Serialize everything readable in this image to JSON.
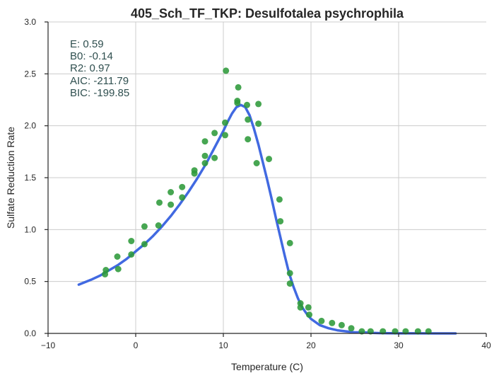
{
  "chart_data": {
    "type": "scatter",
    "title": "405_Sch_TF_TKP: Desulfotalea psychrophila",
    "xlabel": "Temperature (C)",
    "ylabel": "Sulfate Reduction Rate",
    "xlim": [
      -10,
      40
    ],
    "ylim": [
      0,
      3.0
    ],
    "xticks": [
      "−10",
      "0",
      "10",
      "20",
      "30",
      "40"
    ],
    "xtick_values": [
      -10,
      0,
      10,
      20,
      30,
      40
    ],
    "yticks": [
      "0.0",
      "0.5",
      "1.0",
      "1.5",
      "2.0",
      "2.5",
      "3.0"
    ],
    "ytick_values": [
      0,
      0.5,
      1.0,
      1.5,
      2.0,
      2.5,
      3.0
    ],
    "grid": true,
    "stats": [
      "E:  0.59",
      "B0:  -0.14",
      "R2:  0.97",
      "AIC: -211.79",
      "BIC: -199.85"
    ],
    "series": [
      {
        "kind": "points",
        "color": "#2e9a3a",
        "points": [
          [
            -3.5,
            0.57
          ],
          [
            -3.4,
            0.61
          ],
          [
            -2.1,
            0.74
          ],
          [
            -2.0,
            0.62
          ],
          [
            -0.5,
            0.76
          ],
          [
            -0.5,
            0.89
          ],
          [
            1.0,
            0.86
          ],
          [
            1.0,
            1.03
          ],
          [
            2.6,
            1.04
          ],
          [
            2.7,
            1.26
          ],
          [
            4.0,
            1.24
          ],
          [
            4.0,
            1.36
          ],
          [
            5.3,
            1.31
          ],
          [
            5.3,
            1.41
          ],
          [
            6.7,
            1.54
          ],
          [
            6.7,
            1.57
          ],
          [
            7.9,
            1.64
          ],
          [
            7.9,
            1.71
          ],
          [
            7.9,
            1.85
          ],
          [
            9.0,
            1.69
          ],
          [
            9.0,
            1.93
          ],
          [
            10.2,
            1.91
          ],
          [
            10.2,
            2.03
          ],
          [
            10.3,
            2.53
          ],
          [
            11.6,
            2.24
          ],
          [
            11.6,
            2.22
          ],
          [
            11.7,
            2.37
          ],
          [
            12.7,
            2.2
          ],
          [
            12.8,
            2.06
          ],
          [
            12.8,
            1.87
          ],
          [
            13.8,
            1.64
          ],
          [
            14.0,
            2.02
          ],
          [
            14.0,
            2.21
          ],
          [
            15.2,
            1.68
          ],
          [
            16.4,
            1.29
          ],
          [
            16.5,
            1.08
          ],
          [
            17.6,
            0.87
          ],
          [
            17.6,
            0.58
          ],
          [
            17.6,
            0.48
          ],
          [
            18.8,
            0.29
          ],
          [
            18.8,
            0.25
          ],
          [
            19.7,
            0.25
          ],
          [
            19.8,
            0.18
          ],
          [
            21.2,
            0.12
          ],
          [
            22.4,
            0.1
          ],
          [
            23.5,
            0.08
          ],
          [
            24.6,
            0.05
          ],
          [
            25.8,
            0.02
          ],
          [
            26.8,
            0.02
          ],
          [
            28.2,
            0.02
          ],
          [
            29.6,
            0.02
          ],
          [
            30.8,
            0.02
          ],
          [
            32.2,
            0.02
          ],
          [
            33.4,
            0.02
          ]
        ]
      },
      {
        "kind": "line",
        "color": "#4169e1",
        "x": [
          -6.5,
          -5,
          -4,
          -3,
          -2,
          -1,
          0,
          1,
          2,
          3,
          4,
          5,
          6,
          7,
          8,
          9,
          10,
          10.5,
          11,
          11.5,
          12,
          12.5,
          13,
          13.5,
          14,
          14.5,
          15,
          15.5,
          16,
          16.5,
          17,
          17.5,
          18,
          18.5,
          19,
          19.5,
          20,
          21,
          22,
          23,
          24,
          25,
          26,
          27,
          28,
          30,
          32,
          34,
          36.5
        ],
        "y": [
          0.47,
          0.52,
          0.56,
          0.61,
          0.66,
          0.72,
          0.79,
          0.86,
          0.94,
          1.03,
          1.13,
          1.24,
          1.36,
          1.49,
          1.63,
          1.79,
          1.95,
          2.04,
          2.12,
          2.18,
          2.2,
          2.18,
          2.1,
          1.97,
          1.82,
          1.65,
          1.48,
          1.3,
          1.11,
          0.93,
          0.75,
          0.58,
          0.45,
          0.34,
          0.25,
          0.19,
          0.14,
          0.08,
          0.05,
          0.03,
          0.02,
          0.01,
          0.01,
          0.005,
          0.003,
          0.001,
          0.0005,
          0.0002,
          0.0001
        ]
      }
    ]
  }
}
